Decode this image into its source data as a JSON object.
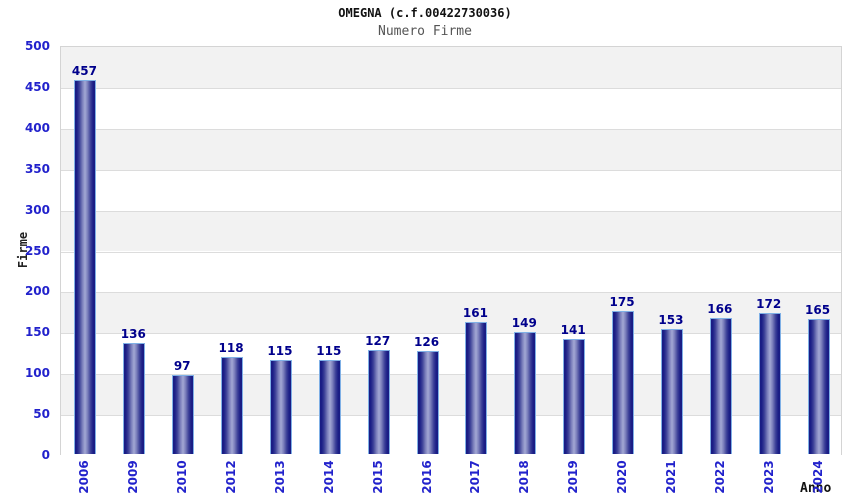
{
  "header": {
    "title": "OMEGNA (c.f.00422730036)",
    "subtitle": "Numero Firme"
  },
  "chart_data": {
    "type": "bar",
    "title": "OMEGNA (c.f.00422730036)",
    "subtitle": "Numero Firme",
    "xlabel": "Anno",
    "ylabel": "Firme",
    "categories": [
      "2006",
      "2009",
      "2010",
      "2012",
      "2013",
      "2014",
      "2015",
      "2016",
      "2017",
      "2018",
      "2019",
      "2020",
      "2021",
      "2022",
      "2023",
      "2024"
    ],
    "values": [
      457,
      136,
      97,
      118,
      115,
      115,
      127,
      126,
      161,
      149,
      141,
      175,
      153,
      166,
      172,
      165
    ],
    "ylim": [
      0,
      500
    ],
    "ytick_step": 50,
    "yticks": [
      0,
      50,
      100,
      150,
      200,
      250,
      300,
      350,
      400,
      450,
      500
    ],
    "legend": "none",
    "grid": "horizontal-bands-alternating",
    "value_labels": "above-bars",
    "colors": {
      "bar_dark": "#191c83",
      "bar_light": "#a3a7d4",
      "bar_cap": "#7fb0e6",
      "value_label": "#00008c",
      "axis_tick_label": "#2222cc",
      "band_gray": "#f2f2f2",
      "gridline": "#dcdcdc",
      "plot_border": "#d4d4d4",
      "title": "#111111",
      "subtitle": "#555555",
      "background": "#ffffff"
    }
  }
}
